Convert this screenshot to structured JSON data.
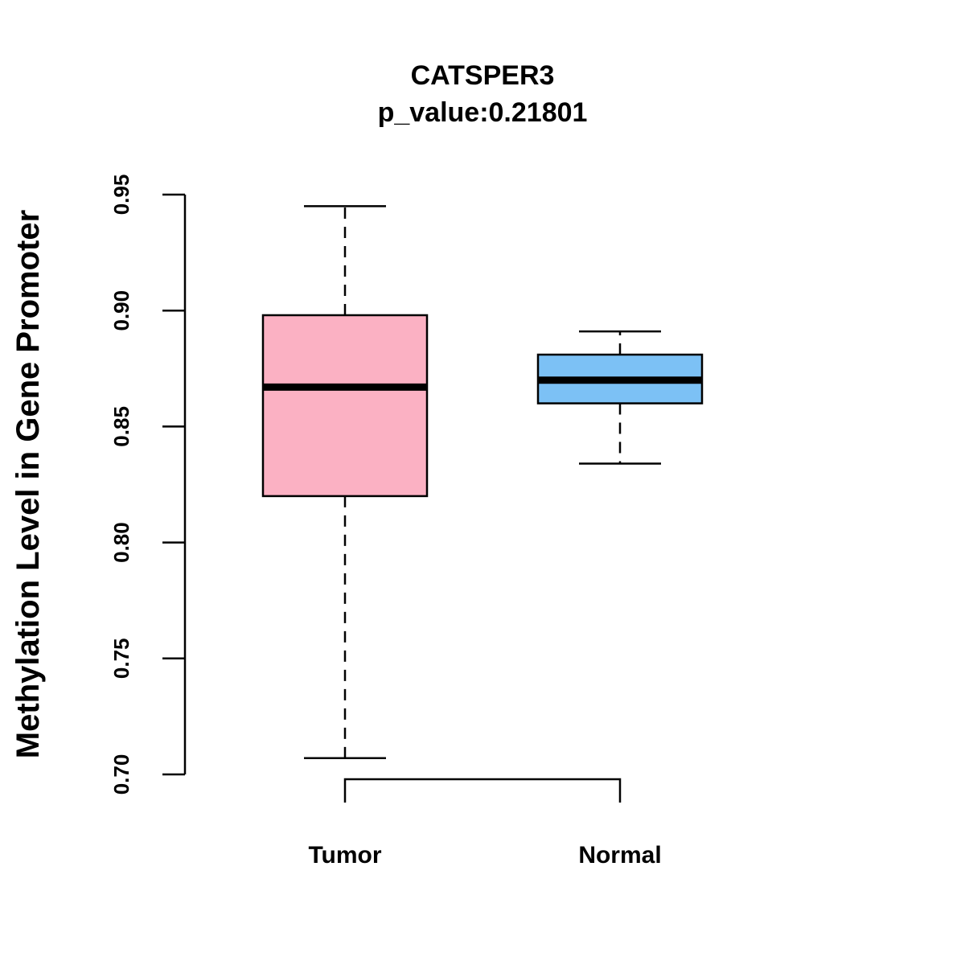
{
  "chart_data": {
    "type": "box",
    "title": "CATSPER3",
    "subtitle": "p_value:0.21801",
    "ylabel": "Methylation Level in Gene Promoter",
    "ylim": [
      0.7,
      0.95
    ],
    "yticks": [
      0.7,
      0.75,
      0.8,
      0.85,
      0.9,
      0.95
    ],
    "ytick_labels": [
      "0.70",
      "0.75",
      "0.80",
      "0.85",
      "0.90",
      "0.95"
    ],
    "categories": [
      "Tumor",
      "Normal"
    ],
    "boxes": [
      {
        "category": "Tumor",
        "min": 0.707,
        "q1": 0.82,
        "median": 0.867,
        "q3": 0.898,
        "max": 0.945,
        "color": "#FBB1C3"
      },
      {
        "category": "Normal",
        "min": 0.834,
        "q1": 0.86,
        "median": 0.87,
        "q3": 0.881,
        "max": 0.891,
        "color": "#7CC1F5"
      }
    ],
    "comparison_bracket": [
      "Tumor",
      "Normal"
    ],
    "grid": false,
    "legend": "none"
  }
}
